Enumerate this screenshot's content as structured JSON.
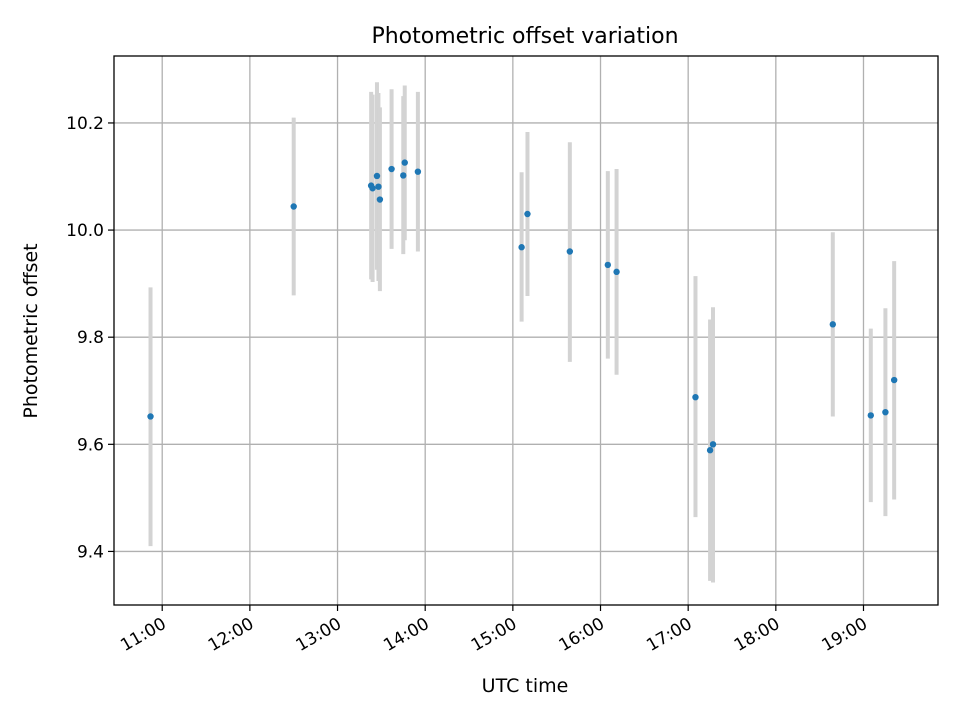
{
  "chart_data": {
    "type": "scatter",
    "title": "Photometric offset variation",
    "xlabel": "UTC time",
    "ylabel": "Photometric offset",
    "xlim": [
      "10:27",
      "19:51"
    ],
    "ylim": [
      9.3,
      10.325
    ],
    "grid": true,
    "x_ticks": [
      "11:00",
      "12:00",
      "13:00",
      "14:00",
      "15:00",
      "16:00",
      "17:00",
      "18:00",
      "19:00"
    ],
    "y_ticks": [
      9.4,
      9.6,
      9.8,
      10.0,
      10.2
    ],
    "point_color": "#1f77b4",
    "errorbar_color": "#d3d3d3",
    "points": [
      {
        "x": "10:52",
        "y": 9.652,
        "ylow": 9.41,
        "yhigh": 9.893
      },
      {
        "x": "12:30",
        "y": 10.044,
        "ylow": 9.878,
        "yhigh": 10.21
      },
      {
        "x": "13:23",
        "y": 10.083,
        "ylow": 9.908,
        "yhigh": 10.258
      },
      {
        "x": "13:24",
        "y": 10.078,
        "ylow": 9.903,
        "yhigh": 10.253
      },
      {
        "x": "13:27",
        "y": 10.101,
        "ylow": 9.926,
        "yhigh": 10.276
      },
      {
        "x": "13:28",
        "y": 10.081,
        "ylow": 9.905,
        "yhigh": 10.256
      },
      {
        "x": "13:29",
        "y": 10.057,
        "ylow": 9.886,
        "yhigh": 10.229
      },
      {
        "x": "13:37",
        "y": 10.114,
        "ylow": 9.965,
        "yhigh": 10.263
      },
      {
        "x": "13:45",
        "y": 10.102,
        "ylow": 9.955,
        "yhigh": 10.25
      },
      {
        "x": "13:46",
        "y": 10.126,
        "ylow": 9.981,
        "yhigh": 10.27
      },
      {
        "x": "13:55",
        "y": 10.109,
        "ylow": 9.96,
        "yhigh": 10.258
      },
      {
        "x": "15:06",
        "y": 9.968,
        "ylow": 9.829,
        "yhigh": 10.108
      },
      {
        "x": "15:10",
        "y": 10.03,
        "ylow": 9.877,
        "yhigh": 10.183
      },
      {
        "x": "15:39",
        "y": 9.96,
        "ylow": 9.754,
        "yhigh": 10.164
      },
      {
        "x": "16:05",
        "y": 9.935,
        "ylow": 9.76,
        "yhigh": 10.11
      },
      {
        "x": "16:11",
        "y": 9.922,
        "ylow": 9.73,
        "yhigh": 10.114
      },
      {
        "x": "17:05",
        "y": 9.688,
        "ylow": 9.464,
        "yhigh": 9.914
      },
      {
        "x": "17:15",
        "y": 9.589,
        "ylow": 9.345,
        "yhigh": 9.833
      },
      {
        "x": "17:17",
        "y": 9.6,
        "ylow": 9.342,
        "yhigh": 9.856
      },
      {
        "x": "18:39",
        "y": 9.824,
        "ylow": 9.652,
        "yhigh": 9.996
      },
      {
        "x": "19:05",
        "y": 9.654,
        "ylow": 9.492,
        "yhigh": 9.816
      },
      {
        "x": "19:15",
        "y": 9.66,
        "ylow": 9.466,
        "yhigh": 9.854
      },
      {
        "x": "19:21",
        "y": 9.72,
        "ylow": 9.497,
        "yhigh": 9.942
      }
    ]
  }
}
